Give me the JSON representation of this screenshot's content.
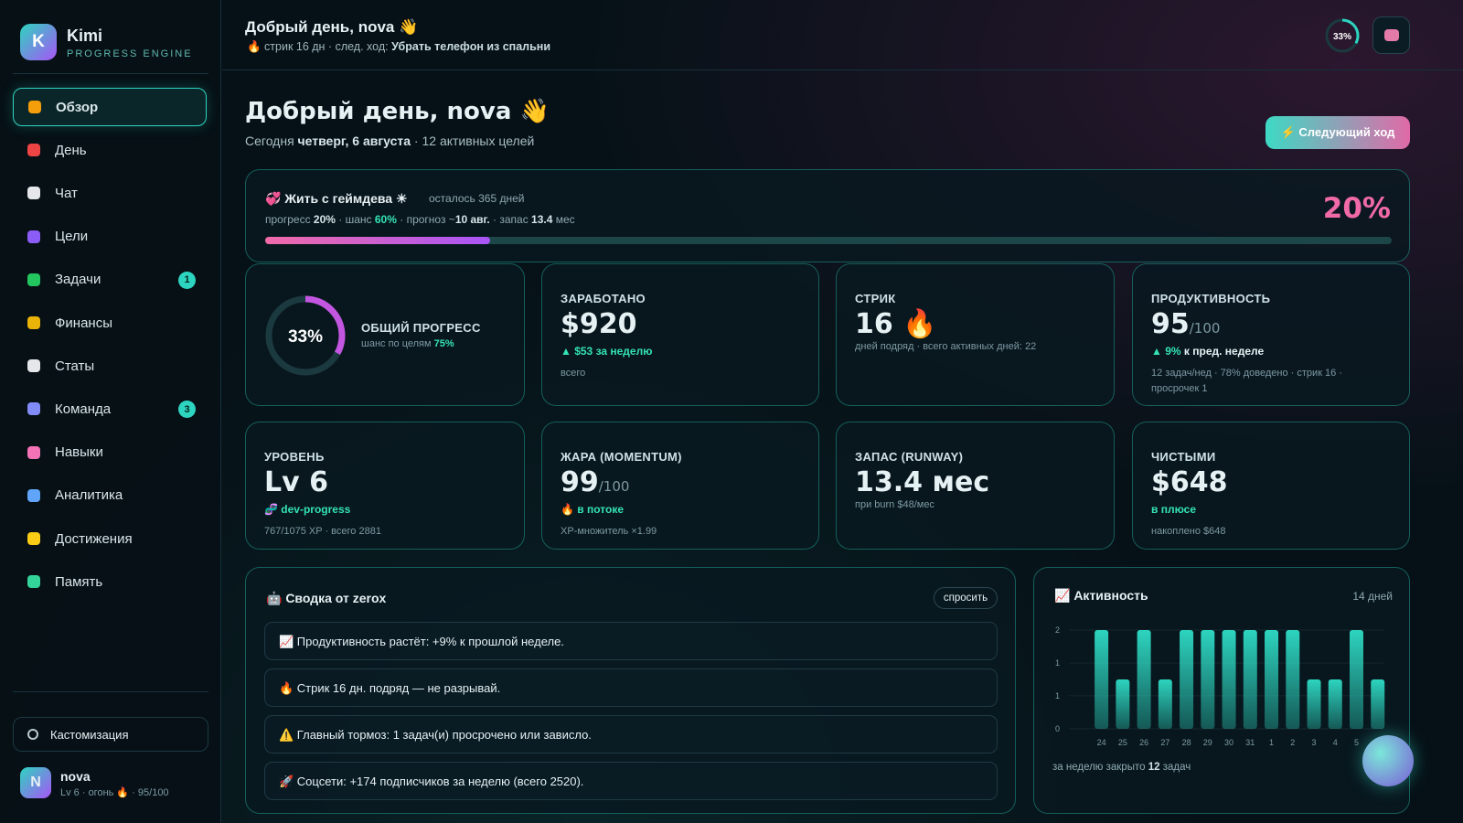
{
  "sidebar": {
    "logo": "K",
    "brand": "Kimi",
    "tagline": "PROGRESS ENGINE",
    "nav": [
      {
        "label": "Обзор"
      },
      {
        "label": "День"
      },
      {
        "label": "Чат"
      },
      {
        "label": "Цели"
      },
      {
        "label": "Задачи",
        "badge": 1
      },
      {
        "label": "Финансы"
      },
      {
        "label": "Статы"
      },
      {
        "label": "Команда",
        "badge": 3
      },
      {
        "label": "Навыки"
      },
      {
        "label": "Аналитика"
      },
      {
        "label": "Достижения"
      },
      {
        "label": "Память"
      }
    ],
    "customize": "Кастомизация",
    "user": {
      "avatar": "N",
      "name": "nova",
      "meta": "Lv 6 · огонь 🔥 · 95/100"
    }
  },
  "topbar": {
    "greeting": "Добрый день, nova 👋",
    "streak": "🔥 стрик 16 дн · след. ход: ",
    "next_move": "Убрать телефон из спальни",
    "ring": {
      "value": 33,
      "label": "33%"
    }
  },
  "hero": {
    "title": "Добрый день, nova 👋",
    "date_prefix": "Сегодня ",
    "date": "четверг, 6 августа",
    "goals": " · 12 активных целей",
    "button": "⚡ Следующий ход"
  },
  "goal": {
    "title": "💞 Жить с геймдева ☀",
    "remaining": "осталось 365 дней",
    "meta": [
      "прогресс ",
      "20%",
      " · шанс ",
      "60%",
      " · прогноз ~",
      "10 авг.",
      " · запас ",
      "13.4",
      " мес"
    ],
    "percent": {
      "value": 20,
      "label": "20%"
    }
  },
  "cards": [
    {
      "ring": {
        "value": 33,
        "label": "33%"
      },
      "label": "ОБЩИЙ ПРОГРЕСС",
      "note": "шанс по целям ",
      "note_value": "75%"
    },
    {
      "label": "ЗАРАБОТАНО",
      "value": "$920",
      "delta": "▲ $53 за неделю",
      "note": "всего"
    },
    {
      "label": "СТРИК",
      "value": "16 🔥",
      "note": "дней подряд · всего активных дней: 22"
    },
    {
      "label": "ПРОДУКТИВНОСТЬ",
      "value": "95",
      "unit": "/100",
      "delta": "▲ 9%",
      "delta_text": " к пред. неделе",
      "note": "12 задач/нед · 78% доведено · стрик 16 · просрочек 1"
    },
    {
      "label": "УРОВЕНЬ",
      "value": "Lv 6",
      "delta": "🧬 dev-progress",
      "note": "767/1075 XP · всего 2881"
    },
    {
      "label": "ЖАРА (MOMENTUM)",
      "value": "99",
      "unit": "/100",
      "delta": "🔥 в потоке",
      "note": "XP-множитель ×1.99"
    },
    {
      "label": "ЗАПАС (RUNWAY)",
      "value": "13.4 мес",
      "note": "при burn $48/мес"
    },
    {
      "label": "ЧИСТЫМИ",
      "value": "$648",
      "delta": "в плюсе",
      "note": "накоплено $648"
    }
  ],
  "summary": {
    "title": "🤖 Сводка от zerox",
    "button": "спросить",
    "items": [
      "📈 Продуктивность растёт: +9% к прошлой неделе.",
      "🔥 Стрик 16 дн. подряд — не разрывай.",
      "⚠️ Главный тормоз: 1 задач(и) просрочено или зависло.",
      "🚀 Соцсети: +174 подписчиков за неделю (всего 2520)."
    ]
  },
  "activity": {
    "footer": [
      "за неделю закрыто ",
      "12",
      " задач"
    ]
  },
  "chart_data": {
    "type": "bar",
    "title": "📈 Активность",
    "subtitle": "14 дней",
    "categories": [
      "24",
      "25",
      "26",
      "27",
      "28",
      "29",
      "30",
      "31",
      "1",
      "2",
      "3",
      "4",
      "5",
      null
    ],
    "values": [
      2,
      1,
      2,
      1,
      2,
      2,
      2,
      2,
      2,
      2,
      1,
      1,
      2,
      1
    ],
    "color": "#2dd4bf",
    "ylim": [
      0,
      2
    ],
    "yticks": [
      0,
      {
        "value": 0.67,
        "label": "1"
      },
      {
        "value": 1.33,
        "label": "1"
      },
      2
    ],
    "grid": true
  }
}
